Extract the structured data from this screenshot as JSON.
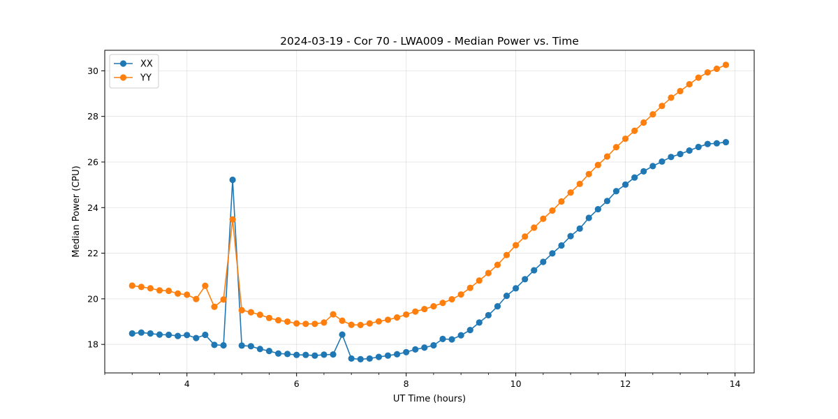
{
  "chart_data": {
    "type": "line",
    "title": "2024-03-19 - Cor 70 - LWA009 - Median Power vs. Time",
    "xlabel": "UT Time (hours)",
    "ylabel": "Median Power (CPU)",
    "xlim": [
      2.5,
      14.35
    ],
    "ylim": [
      16.75,
      30.9
    ],
    "xticks": [
      4,
      6,
      8,
      10,
      12,
      14
    ],
    "xtick_labels": [
      "4",
      "6",
      "8",
      "10",
      "12",
      "14"
    ],
    "x_minor_step": 0.5,
    "yticks": [
      18,
      20,
      22,
      24,
      26,
      28,
      30
    ],
    "ytick_labels": [
      "18",
      "20",
      "22",
      "24",
      "26",
      "28",
      "30"
    ],
    "grid": true,
    "legend_position": "top-left",
    "x": [
      3.0,
      3.167,
      3.333,
      3.5,
      3.667,
      3.833,
      4.0,
      4.167,
      4.333,
      4.5,
      4.667,
      4.833,
      5.0,
      5.167,
      5.333,
      5.5,
      5.667,
      5.833,
      6.0,
      6.167,
      6.333,
      6.5,
      6.667,
      6.833,
      7.0,
      7.167,
      7.333,
      7.5,
      7.667,
      7.833,
      8.0,
      8.167,
      8.333,
      8.5,
      8.667,
      8.833,
      9.0,
      9.167,
      9.333,
      9.5,
      9.667,
      9.833,
      10.0,
      10.167,
      10.333,
      10.5,
      10.667,
      10.833,
      11.0,
      11.167,
      11.333,
      11.5,
      11.667,
      11.833,
      12.0,
      12.167,
      12.333,
      12.5,
      12.667,
      12.833,
      13.0,
      13.167,
      13.333,
      13.5,
      13.667,
      13.833
    ],
    "series": [
      {
        "name": "XX",
        "color": "#1f77b4",
        "values": [
          18.48,
          18.52,
          18.48,
          18.43,
          18.42,
          18.37,
          18.41,
          18.28,
          18.42,
          17.98,
          17.96,
          25.22,
          17.95,
          17.92,
          17.8,
          17.71,
          17.6,
          17.58,
          17.54,
          17.54,
          17.51,
          17.55,
          17.56,
          18.43,
          17.38,
          17.35,
          17.38,
          17.45,
          17.51,
          17.57,
          17.66,
          17.78,
          17.86,
          17.96,
          18.24,
          18.22,
          18.4,
          18.63,
          18.96,
          19.28,
          19.67,
          20.13,
          20.46,
          20.86,
          21.25,
          21.62,
          21.99,
          22.34,
          22.75,
          23.08,
          23.55,
          23.93,
          24.29,
          24.72,
          25.01,
          25.32,
          25.59,
          25.82,
          26.02,
          26.22,
          26.35,
          26.5,
          26.66,
          26.79,
          26.82,
          26.87
        ]
      },
      {
        "name": "YY",
        "color": "#ff7f0e",
        "values": [
          20.58,
          20.52,
          20.46,
          20.37,
          20.35,
          20.23,
          20.18,
          19.99,
          20.57,
          19.65,
          19.97,
          23.48,
          19.5,
          19.41,
          19.3,
          19.16,
          19.06,
          19.0,
          18.92,
          18.9,
          18.9,
          18.96,
          19.32,
          19.04,
          18.86,
          18.85,
          18.92,
          19.01,
          19.08,
          19.18,
          19.31,
          19.44,
          19.55,
          19.67,
          19.82,
          19.98,
          20.19,
          20.48,
          20.8,
          21.13,
          21.49,
          21.92,
          22.35,
          22.73,
          23.12,
          23.51,
          23.87,
          24.27,
          24.66,
          25.04,
          25.47,
          25.87,
          26.24,
          26.65,
          27.02,
          27.37,
          27.73,
          28.09,
          28.46,
          28.82,
          29.11,
          29.41,
          29.7,
          29.93,
          30.09,
          30.26
        ]
      }
    ]
  }
}
